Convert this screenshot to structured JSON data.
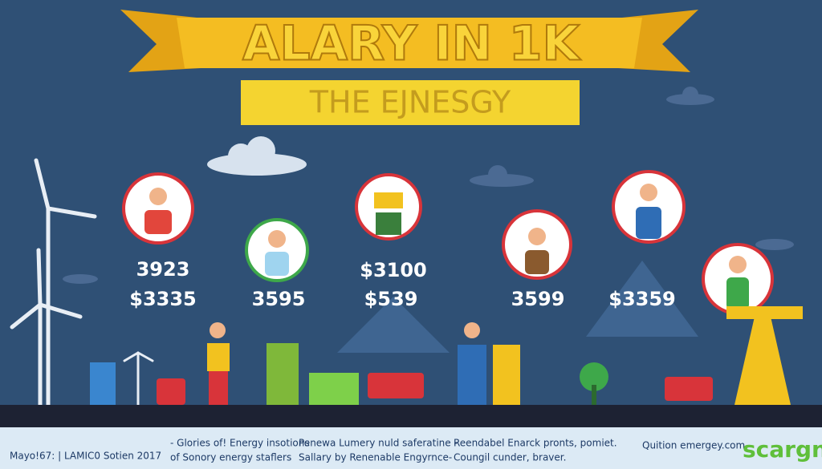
{
  "header": {
    "title": "ALARY IN 1K",
    "subtitle": "THE EJNESGY"
  },
  "figures": [
    "3923",
    "$3335",
    "3595",
    "$3100",
    "$539",
    "3599",
    "$3359"
  ],
  "footer": {
    "credit": "Mayo!67: | LAMIC0 Sotien 2017",
    "columns": [
      [
        "- Glories of! Energy insotions",
        "of Sonory energy staflers"
      ],
      [
        "Penewa Lumery nuld saferatine -",
        "Sallary by Renenable Engyrnce-"
      ],
      [
        "Reendabel Enarck pronts, pomiet.",
        "Coungil cunder, braver."
      ]
    ],
    "website": "Quition emergey.com",
    "brand": "scargn"
  }
}
